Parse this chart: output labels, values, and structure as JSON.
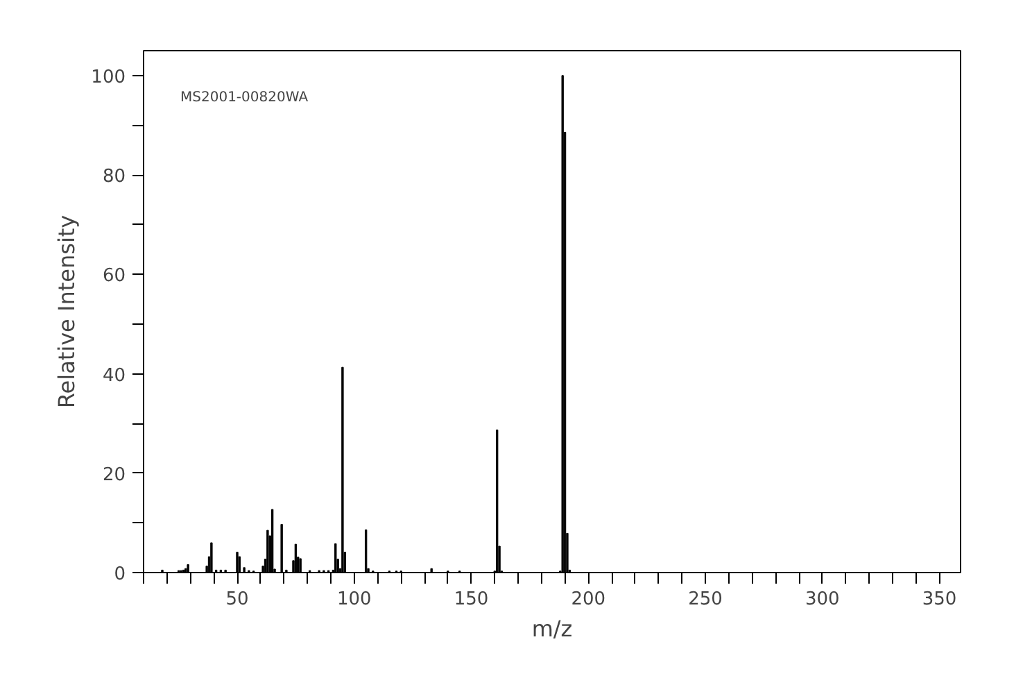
{
  "chart_data": {
    "type": "bar",
    "xlabel": "m/z",
    "ylabel": "Relative Intensity",
    "annotations": [
      "MS2001-00820WA"
    ],
    "color": "#000000",
    "x": [
      18,
      25,
      26,
      27,
      28,
      29,
      37,
      38,
      39,
      41,
      43,
      45,
      50,
      51,
      53,
      55,
      57,
      61,
      62,
      63,
      64,
      65,
      66,
      69,
      71,
      74,
      75,
      76,
      77,
      81,
      85,
      87,
      89,
      91,
      92,
      93,
      94,
      95,
      96,
      105,
      106,
      108,
      115,
      118,
      120,
      133,
      140,
      145,
      160,
      161,
      162,
      163,
      188,
      189,
      190,
      191,
      192
    ],
    "values": [
      0.5,
      0.4,
      0.4,
      0.5,
      0.8,
      1.6,
      1.3,
      3.2,
      6.0,
      0.5,
      0.5,
      0.5,
      4.1,
      3.2,
      1.0,
      0.4,
      0.3,
      1.3,
      2.7,
      8.5,
      7.4,
      12.7,
      0.7,
      9.7,
      0.5,
      2.4,
      5.7,
      3.1,
      2.8,
      0.4,
      0.4,
      0.4,
      0.4,
      0.5,
      5.8,
      2.7,
      0.8,
      41.3,
      4.1,
      8.6,
      0.8,
      0.3,
      0.3,
      0.3,
      0.3,
      0.8,
      0.3,
      0.3,
      0.3,
      28.7,
      5.3,
      0.3,
      0.3,
      100,
      88.6,
      7.9,
      0.5
    ],
    "xlim": [
      10,
      359
    ],
    "ylim": [
      0,
      105
    ],
    "xticks": [
      {
        "value": 10,
        "label": null
      },
      {
        "value": 20,
        "label": null
      },
      {
        "value": 30,
        "label": null
      },
      {
        "value": 40,
        "label": null
      },
      50,
      {
        "value": 60,
        "label": null
      },
      {
        "value": 70,
        "label": null
      },
      {
        "value": 80,
        "label": null
      },
      {
        "value": 90,
        "label": null
      },
      100,
      {
        "value": 110,
        "label": null
      },
      {
        "value": 120,
        "label": null
      },
      {
        "value": 130,
        "label": null
      },
      {
        "value": 140,
        "label": null
      },
      150,
      {
        "value": 160,
        "label": null
      },
      {
        "value": 170,
        "label": null
      },
      {
        "value": 180,
        "label": null
      },
      {
        "value": 190,
        "label": null
      },
      200,
      {
        "value": 210,
        "label": null
      },
      {
        "value": 220,
        "label": null
      },
      {
        "value": 230,
        "label": null
      },
      {
        "value": 240,
        "label": null
      },
      250,
      {
        "value": 260,
        "label": null
      },
      {
        "value": 270,
        "label": null
      },
      {
        "value": 280,
        "label": null
      },
      {
        "value": 290,
        "label": null
      },
      300,
      {
        "value": 310,
        "label": null
      },
      {
        "value": 320,
        "label": null
      },
      {
        "value": 330,
        "label": null
      },
      {
        "value": 340,
        "label": null
      },
      350
    ],
    "yticks": [
      0,
      {
        "value": 10,
        "label": null
      },
      20,
      {
        "value": 30,
        "label": null
      },
      40,
      {
        "value": 50,
        "label": null
      },
      60,
      {
        "value": 70,
        "label": null
      },
      80,
      {
        "value": 90,
        "label": null
      },
      100
    ],
    "grid": false
  }
}
